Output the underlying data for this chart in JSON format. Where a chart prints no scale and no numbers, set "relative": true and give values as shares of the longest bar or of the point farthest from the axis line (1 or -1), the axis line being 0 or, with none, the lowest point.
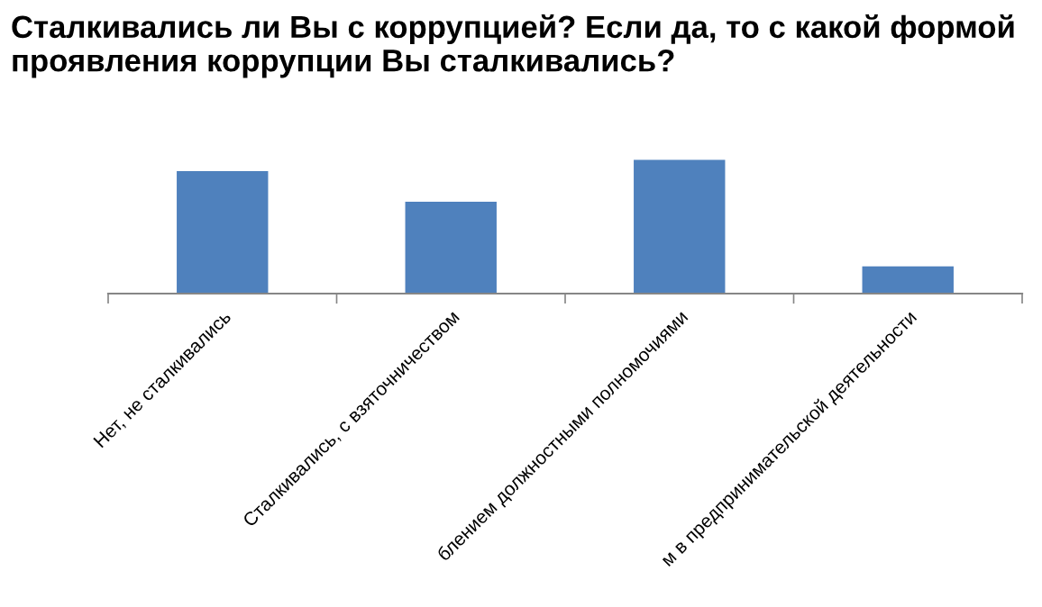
{
  "chart_data": {
    "type": "bar",
    "title": "Сталкивались ли Вы с коррупцией? Если да, то с какой формой проявления коррупции Вы сталкивались?",
    "categories": [
      "Нет, не сталкивались",
      "Сталкивались, с взяточничеством",
      "блением должностными полномочиями",
      "м в предпринимательской деятельности"
    ],
    "values": [
      0.915,
      0.687,
      1,
      0.204
    ],
    "color": "#4f81bd",
    "relative": true,
    "grid": false,
    "legend": false
  }
}
